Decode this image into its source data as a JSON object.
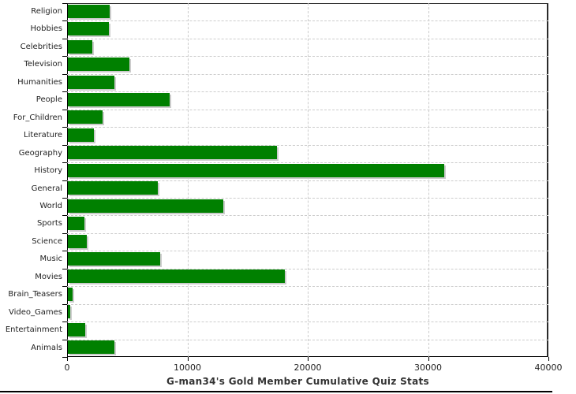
{
  "chart_data": {
    "type": "bar",
    "orientation": "horizontal",
    "title": "G-man34's Gold Member Cumulative Quiz Stats",
    "categories": [
      "Religion",
      "Hobbies",
      "Celebrities",
      "Television",
      "Humanities",
      "People",
      "For_Children",
      "Literature",
      "Geography",
      "History",
      "General",
      "World",
      "Sports",
      "Science",
      "Music",
      "Movies",
      "Brain_Teasers",
      "Video_Games",
      "Entertainment",
      "Animals"
    ],
    "values": [
      3450,
      3400,
      2000,
      5100,
      3850,
      8450,
      2900,
      2150,
      17350,
      31300,
      7500,
      12900,
      1400,
      1550,
      7650,
      18000,
      400,
      200,
      1450,
      3900
    ],
    "xlabel": "",
    "ylabel": "",
    "xlim": [
      0,
      40000
    ],
    "xticks": [
      0,
      10000,
      20000,
      30000,
      40000
    ],
    "xtick_labels": [
      "0",
      "10000",
      "20000",
      "30000",
      "40000"
    ],
    "grid": true,
    "legend": false,
    "colors": {
      "bar": "#008000",
      "bar_shadow": "#cccccc",
      "gridline": "#cccccc",
      "axis": "#000000",
      "title_text": "#333333",
      "label_text": "#1f1f1f",
      "background": "#ffffff"
    }
  }
}
